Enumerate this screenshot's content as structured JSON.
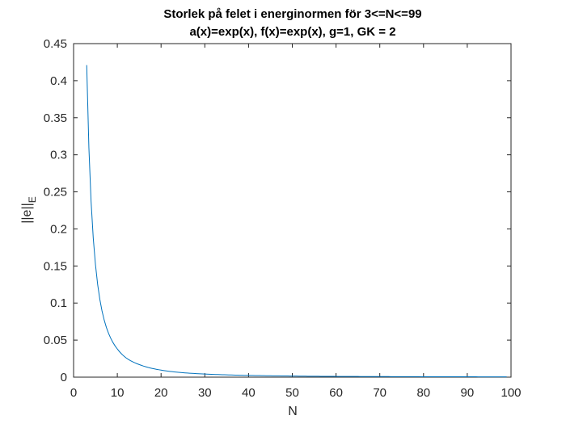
{
  "chart_data": {
    "type": "line",
    "title": "Storlek på felet i energinormen för 3<=N<=99",
    "subtitle": "a(x)=exp(x), f(x)=exp(x), g=1, GK = 2",
    "xlabel": "N",
    "ylabel_main": "||e||",
    "ylabel_sub": "E",
    "xlim": [
      0,
      100
    ],
    "ylim": [
      0,
      0.45
    ],
    "xticks": [
      0,
      10,
      20,
      30,
      40,
      50,
      60,
      70,
      80,
      90,
      100
    ],
    "yticks": [
      0,
      0.05,
      0.1,
      0.15,
      0.2,
      0.25,
      0.3,
      0.35,
      0.4,
      0.45
    ],
    "grid": false,
    "series": [
      {
        "color": "#0072BD",
        "x": [
          3,
          4,
          5,
          6,
          7,
          8,
          10,
          12,
          15,
          20,
          25,
          30,
          40,
          50,
          60,
          70,
          80,
          90,
          99
        ],
        "y": [
          0.421,
          0.237,
          0.152,
          0.105,
          0.077,
          0.059,
          0.038,
          0.026,
          0.017,
          0.0095,
          0.006,
          0.0042,
          0.0024,
          0.0015,
          0.001,
          0.0008,
          0.0006,
          0.0005,
          0.0004
        ]
      }
    ]
  }
}
